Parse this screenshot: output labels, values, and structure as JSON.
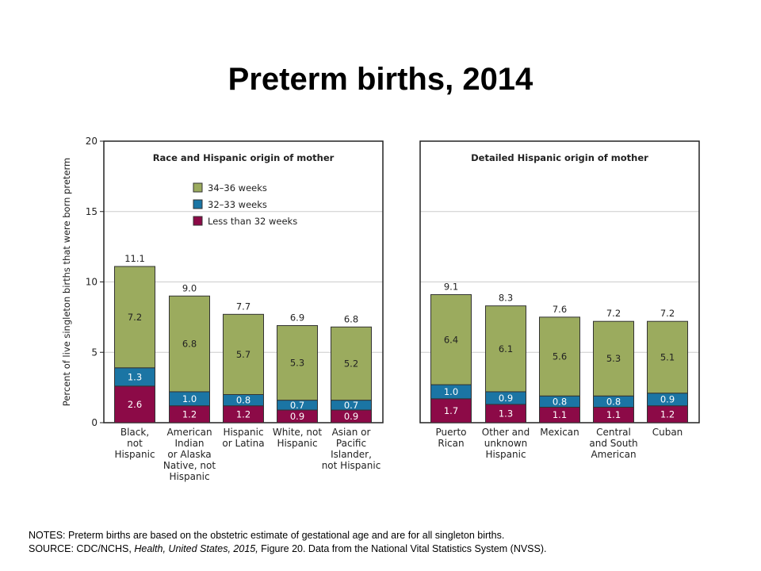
{
  "slide": {
    "title": "Preterm births, 2014",
    "notes_line": "NOTES: Preterm births are based on the obstetric estimate of gestational age and are for all singleton births.",
    "source_prefix": "SOURCE: CDC/NCHS, ",
    "source_italic_1": "Health, United States, 2015,",
    "source_figure": " Figure 20. Data from the National Vital Statistics System (NVSS)."
  },
  "colors": {
    "34-36": "#9bab5e",
    "32-33": "#1b75a4",
    "lt32": "#8c0a47",
    "frame": "#222222",
    "grid": "#cccccc"
  },
  "chart_data": {
    "type": "bar",
    "stacked": true,
    "ylabel": "Percent of live singleton births that were born preterm",
    "ylim": [
      0,
      20
    ],
    "yticks": [
      0,
      5,
      10,
      15,
      20
    ],
    "grid": true,
    "legend_position": "top-left of left panel",
    "legend": [
      "34–36 weeks",
      "32–33 weeks",
      "Less than 32 weeks"
    ],
    "panels": [
      {
        "title": "Race and Hispanic origin of mother",
        "categories": [
          [
            "Black,",
            "not",
            "Hispanic"
          ],
          [
            "American",
            "Indian",
            "or Alaska",
            "Native, not",
            "Hispanic"
          ],
          [
            "Hispanic",
            "or Latina"
          ],
          [
            "White, not",
            "Hispanic"
          ],
          [
            "Asian or",
            "Pacific",
            "Islander,",
            "not Hispanic"
          ]
        ],
        "totals": [
          "11.1",
          "9.0",
          "7.7",
          "6.9",
          "6.8"
        ],
        "series": [
          {
            "name": "Less than 32 weeks",
            "values": [
              2.6,
              1.2,
              1.2,
              0.9,
              0.9
            ],
            "labels": [
              "2.6",
              "1.2",
              "1.2",
              "0.9",
              "0.9"
            ]
          },
          {
            "name": "32–33 weeks",
            "values": [
              1.3,
              1.0,
              0.8,
              0.7,
              0.7
            ],
            "labels": [
              "1.3",
              "1.0",
              "0.8",
              "0.7",
              "0.7"
            ]
          },
          {
            "name": "34–36 weeks",
            "values": [
              7.2,
              6.8,
              5.7,
              5.3,
              5.2
            ],
            "labels": [
              "7.2",
              "6.8",
              "5.7",
              "5.3",
              "5.2"
            ]
          }
        ]
      },
      {
        "title": "Detailed Hispanic origin of mother",
        "categories": [
          [
            "Puerto",
            "Rican"
          ],
          [
            "Other and",
            "unknown",
            "Hispanic"
          ],
          [
            "Mexican"
          ],
          [
            "Central",
            "and South",
            "American"
          ],
          [
            "Cuban"
          ]
        ],
        "totals": [
          "9.1",
          "8.3",
          "7.6",
          "7.2",
          "7.2"
        ],
        "series": [
          {
            "name": "Less than 32 weeks",
            "values": [
              1.7,
              1.3,
              1.1,
              1.1,
              1.2
            ],
            "labels": [
              "1.7",
              "1.3",
              "1.1",
              "1.1",
              "1.2"
            ]
          },
          {
            "name": "32–33 weeks",
            "values": [
              1.0,
              0.9,
              0.8,
              0.8,
              0.9
            ],
            "labels": [
              "1.0",
              "0.9",
              "0.8",
              "0.8",
              "0.9"
            ]
          },
          {
            "name": "34–36 weeks",
            "values": [
              6.4,
              6.1,
              5.6,
              5.3,
              5.1
            ],
            "labels": [
              "6.4",
              "6.1",
              "5.6",
              "5.3",
              "5.1"
            ]
          }
        ]
      }
    ]
  }
}
